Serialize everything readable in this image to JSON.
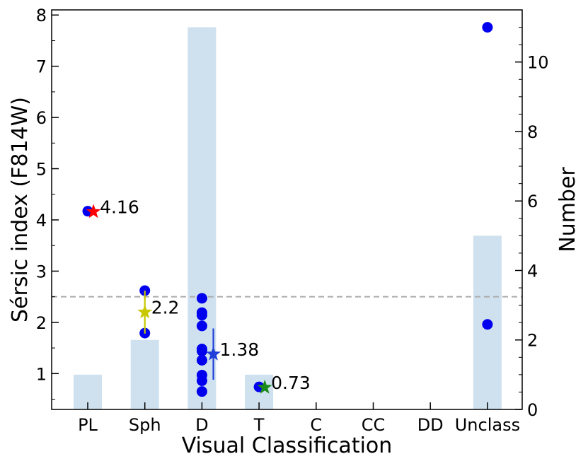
{
  "chart_data": {
    "type": "bar",
    "xlabel": "Visual Classification",
    "ylabel": "Sérsic index (F814W)",
    "y2label": "Number",
    "categories": [
      "PL",
      "Sph",
      "D",
      "T",
      "C",
      "CC",
      "DD",
      "Unclass"
    ],
    "ylim": [
      0.3,
      8.1
    ],
    "y2lim": [
      0,
      11.5
    ],
    "yticks": [
      "1",
      "2",
      "3",
      "4",
      "5",
      "6",
      "7",
      "8"
    ],
    "y2ticks": [
      "0",
      "2",
      "4",
      "6",
      "8",
      "10"
    ],
    "reference_line": {
      "y": 2.5,
      "style": "dashed",
      "color": "#aaaaaa"
    },
    "grid": false,
    "series": [
      {
        "type": "bar",
        "axis": "right",
        "color": "#cfe1ef",
        "values": [
          1,
          2,
          11,
          1,
          0,
          0,
          0,
          5
        ]
      },
      {
        "type": "scatter",
        "axis": "left",
        "color": "#0000ee",
        "points": [
          {
            "category": "PL",
            "y": 4.17
          },
          {
            "category": "Sph",
            "y": 2.62
          },
          {
            "category": "Sph",
            "y": 1.79
          },
          {
            "category": "D",
            "y": 2.47
          },
          {
            "category": "D",
            "y": 2.19
          },
          {
            "category": "D",
            "y": 2.14
          },
          {
            "category": "D",
            "y": 1.93
          },
          {
            "category": "D",
            "y": 1.48
          },
          {
            "category": "D",
            "y": 1.44
          },
          {
            "category": "D",
            "y": 1.26
          },
          {
            "category": "D",
            "y": 0.97
          },
          {
            "category": "D",
            "y": 0.86
          },
          {
            "category": "D",
            "y": 0.65
          },
          {
            "category": "T",
            "y": 0.74
          },
          {
            "category": "Unclass",
            "y": 7.76
          },
          {
            "category": "Unclass",
            "y": 1.96
          }
        ]
      },
      {
        "type": "star",
        "axis": "left",
        "markers": [
          {
            "category": "PL",
            "y": 4.16,
            "yerr": 0,
            "color": "#ff0000",
            "label": "4.16",
            "offset": 0.1
          },
          {
            "category": "Sph",
            "y": 2.2,
            "yerr": 0.42,
            "color": "#c8c800",
            "label": "2.2",
            "offset": 0
          },
          {
            "category": "D",
            "y": 1.38,
            "yerr": 0.5,
            "color": "#1f3fd8",
            "label": "1.38",
            "offset": 0.2
          },
          {
            "category": "T",
            "y": 0.73,
            "yerr": 0,
            "color": "#1a8a1a",
            "label": "0.73",
            "offset": 0.1
          }
        ]
      }
    ]
  }
}
